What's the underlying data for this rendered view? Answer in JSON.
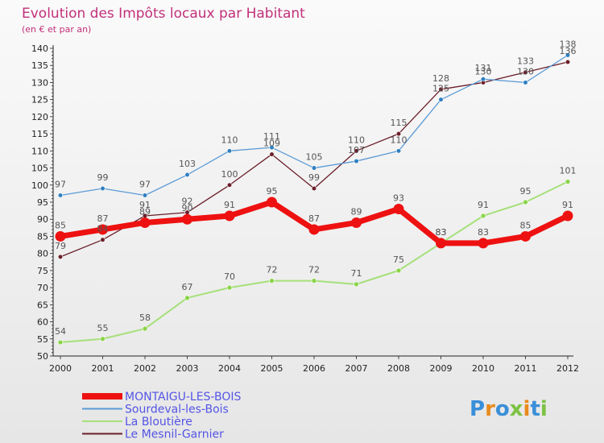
{
  "chart_data": {
    "type": "line",
    "title": "Evolution des Impôts locaux par Habitant",
    "subtitle": "(en € et par an)",
    "xlabel": "",
    "ylabel": "",
    "ylim": [
      50,
      140
    ],
    "yticks": [
      50,
      55,
      60,
      65,
      70,
      75,
      80,
      85,
      90,
      95,
      100,
      105,
      110,
      115,
      120,
      125,
      130,
      135,
      140
    ],
    "categories": [
      "2000",
      "2001",
      "2002",
      "2003",
      "2004",
      "2005",
      "2006",
      "2007",
      "2008",
      "2009",
      "2010",
      "2011",
      "2012"
    ],
    "series": [
      {
        "name": "Le Mesnil-Garnier",
        "color": "#6b1f2a",
        "width": 1.3,
        "dot": 2.8,
        "dotFill": "#6b1f2a",
        "values": [
          79,
          84,
          91,
          92,
          100,
          109,
          99,
          110,
          115,
          128,
          130,
          133,
          136
        ]
      },
      {
        "name": "Sourdeval-les-Bois",
        "color": "#5b9bd5",
        "width": 1.3,
        "dot": 2.8,
        "dotFill": "#2f7fc1",
        "values": [
          97,
          99,
          97,
          103,
          110,
          111,
          105,
          107,
          110,
          125,
          131,
          130,
          138
        ]
      },
      {
        "name": "La Bloutière",
        "color": "#a6e07a",
        "width": 2,
        "dot": 3,
        "dotFill": "#8bd44a",
        "values": [
          54,
          55,
          58,
          67,
          70,
          72,
          72,
          71,
          75,
          83,
          91,
          95,
          101
        ]
      },
      {
        "name": "MONTAIGU-LES-BOIS",
        "color": "#ee1111",
        "width": 7,
        "dot": 6.5,
        "dotFill": "#ee1111",
        "values": [
          85,
          87,
          89,
          90,
          91,
          95,
          87,
          89,
          93,
          83,
          83,
          85,
          91
        ]
      }
    ],
    "legend": [
      "MONTAIGU-LES-BOIS",
      "Sourdeval-les-Bois",
      "La Bloutière",
      "Le Mesnil-Garnier"
    ],
    "legend_position": "bottom-left",
    "grid": false
  },
  "logo": {
    "text": "Proxiti",
    "colors": [
      "#3a8fd8",
      "#e88a1c",
      "#3a8fd8",
      "#7cc242",
      "#e88a1c",
      "#3a8fd8",
      "#7cc242"
    ]
  }
}
